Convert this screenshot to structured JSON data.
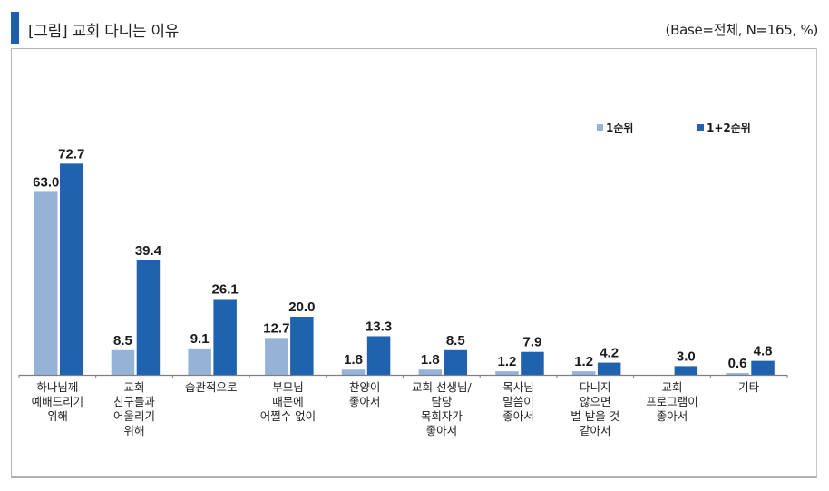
{
  "header": {
    "title": "[그림] 교회 다니는 이유",
    "base_note": "(Base=전체, N=165, %)"
  },
  "colors": {
    "title_accent": "#1c5fae",
    "series_1": "#95b3d7",
    "series_2": "#1f62ae",
    "axis": "#7f7f7f"
  },
  "chart_data": {
    "type": "bar",
    "title": "[그림] 교회 다니는 이유",
    "subtitle": "(Base=전체, N=165, %)",
    "xlabel": "",
    "ylabel": "",
    "ylim": [
      0,
      80
    ],
    "grid": false,
    "legend_position": "top-right",
    "categories": [
      [
        "하나님께",
        "예배드리기",
        "위해"
      ],
      [
        "교회",
        "친구들과",
        "어울리기",
        "위해"
      ],
      [
        "습관적으로"
      ],
      [
        "부모님",
        "때문에",
        "어쩔수 없이"
      ],
      [
        "찬양이",
        "좋아서"
      ],
      [
        "교회 선생님/",
        "담당",
        "목회자가",
        "좋아서"
      ],
      [
        "목사님",
        "말씀이",
        "좋아서"
      ],
      [
        "다니지",
        "않으면",
        "벌 받을 것",
        "같아서"
      ],
      [
        "교회",
        "프로그램이",
        "좋아서"
      ],
      [
        "기타"
      ]
    ],
    "series": [
      {
        "name": "1순위",
        "values": [
          63.0,
          8.5,
          9.1,
          12.7,
          1.8,
          1.8,
          1.2,
          1.2,
          null,
          0.6
        ]
      },
      {
        "name": "1+2순위",
        "values": [
          72.7,
          39.4,
          26.1,
          20.0,
          13.3,
          8.5,
          7.9,
          4.2,
          3.0,
          4.8
        ]
      }
    ]
  }
}
